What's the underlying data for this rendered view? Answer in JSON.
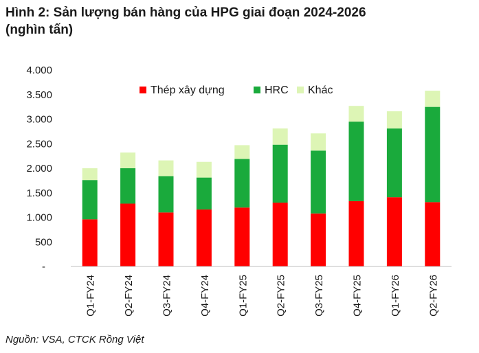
{
  "title_line1": "Hình 2: Sản lượng bán hàng của HPG giai đoạn 2024-2026",
  "title_line2": "(nghìn tấn)",
  "source": "Nguồn: VSA, CTCK Rồng Việt",
  "chart_data": {
    "type": "bar",
    "stacked": true,
    "categories": [
      "Q1-FY24",
      "Q2-FY24",
      "Q3-FY24",
      "Q4-FY24",
      "Q1-FY25",
      "Q2-FY25",
      "Q3-FY25",
      "Q4-FY25",
      "Q1-FY26",
      "Q2-FY26"
    ],
    "series": [
      {
        "name": "Thép xây dựng",
        "color": "#ff0000",
        "values": [
          960,
          1280,
          1100,
          1160,
          1200,
          1300,
          1080,
          1330,
          1410,
          1310
        ]
      },
      {
        "name": "HRC",
        "color": "#1aaa3c",
        "values": [
          800,
          720,
          740,
          650,
          990,
          1180,
          1280,
          1620,
          1400,
          1940
        ]
      },
      {
        "name": "Khác",
        "color": "#ddf5b5",
        "values": [
          240,
          320,
          320,
          320,
          280,
          330,
          350,
          320,
          350,
          330
        ]
      }
    ],
    "yticks": [
      "-",
      "500",
      "1.000",
      "1.500",
      "2.000",
      "2.500",
      "3.000",
      "3.500",
      "4.000"
    ],
    "ylim": [
      0,
      4000
    ],
    "legend_position": "top",
    "grid": false
  }
}
